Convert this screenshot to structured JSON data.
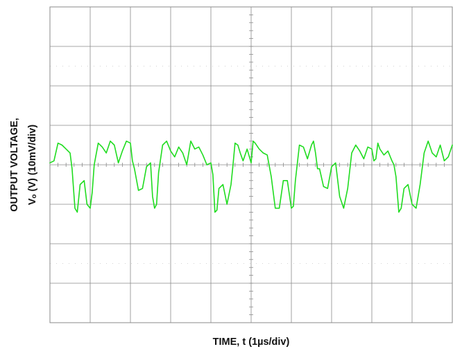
{
  "chart_data": {
    "type": "line",
    "title": "",
    "xlabel": "TIME, t (1µs/div)",
    "ylabel_line1": "OUTPUT VOLTAGE,",
    "ylabel_line2": "Vₒ (V) (10mV/div)",
    "x_unit": "µs",
    "y_unit": "mV",
    "xlim": [
      -5,
      5
    ],
    "ylim": [
      -40,
      40
    ],
    "x_divisions": 10,
    "y_divisions": 8,
    "grid": true,
    "legend": "none",
    "trace_color": "#1fdc1f",
    "grid_color": "#8a8a8a",
    "period_us": 4.05,
    "series": [
      {
        "x": [
          -5.0,
          -4.9,
          -4.8,
          -4.7,
          -4.6,
          -4.5,
          -4.45,
          -4.38,
          -4.32,
          -4.25,
          -4.15,
          -4.08,
          -4.0,
          -3.95,
          -3.9,
          -3.8,
          -3.7,
          -3.6,
          -3.5,
          -3.4,
          -3.3,
          -3.2,
          -3.1,
          -3.0,
          -2.95,
          -2.9,
          -2.8,
          -2.7,
          -2.6,
          -2.5,
          -2.45,
          -2.4,
          -2.35,
          -2.3,
          -2.2,
          -2.1,
          -2.0,
          -1.9,
          -1.8,
          -1.7,
          -1.6,
          -1.5,
          -1.4,
          -1.3,
          -1.2,
          -1.1,
          -1.0,
          -0.95,
          -0.9,
          -0.85,
          -0.8,
          -0.7,
          -0.6,
          -0.5,
          -0.45,
          -0.4,
          -0.33,
          -0.27,
          -0.2,
          -0.1,
          0.0,
          0.05,
          0.1,
          0.2,
          0.3,
          0.4,
          0.5,
          0.6,
          0.7,
          0.8,
          0.9,
          1.0,
          1.05,
          1.1,
          1.2,
          1.3,
          1.4,
          1.5,
          1.55,
          1.6,
          1.65,
          1.7,
          1.8,
          1.9,
          2.0,
          2.1,
          2.2,
          2.3,
          2.4,
          2.5,
          2.6,
          2.7,
          2.8,
          2.9,
          3.0,
          3.05,
          3.1,
          3.15,
          3.2,
          3.3,
          3.4,
          3.5,
          3.55,
          3.6,
          3.67,
          3.73,
          3.8,
          3.9,
          4.0,
          4.1,
          4.2,
          4.3,
          4.4,
          4.5,
          4.6,
          4.7,
          4.8,
          4.9,
          5.0
        ],
        "y": [
          0.5,
          1.0,
          5.5,
          5.0,
          4.0,
          3.0,
          -1.0,
          -11.0,
          -12.0,
          -5.0,
          -4.0,
          -10.0,
          -11.0,
          -7.0,
          0.0,
          5.5,
          4.5,
          3.0,
          6.0,
          5.0,
          0.5,
          3.5,
          6.0,
          5.5,
          1.0,
          -1.0,
          -6.5,
          -6.0,
          -0.5,
          0.5,
          -8.0,
          -11.0,
          -10.0,
          -2.0,
          5.0,
          6.0,
          3.5,
          2.0,
          4.5,
          3.0,
          0.0,
          6.0,
          4.0,
          4.5,
          2.5,
          0.0,
          0.5,
          -2.5,
          -12.0,
          -11.5,
          -6.0,
          -5.0,
          -10.0,
          -5.0,
          0.0,
          5.5,
          5.0,
          3.0,
          1.0,
          4.0,
          0.5,
          6.0,
          5.5,
          4.0,
          3.0,
          2.5,
          -3.0,
          -11.0,
          -11.0,
          -4.0,
          -4.0,
          -11.0,
          -10.5,
          -4.0,
          5.0,
          4.5,
          1.5,
          5.0,
          6.0,
          3.0,
          -1.0,
          -1.0,
          -5.5,
          -6.0,
          -0.5,
          0.5,
          -8.0,
          -11.0,
          -6.0,
          3.0,
          5.0,
          3.5,
          1.5,
          4.5,
          4.0,
          1.0,
          1.5,
          5.5,
          4.0,
          2.5,
          3.5,
          1.0,
          0.0,
          -3.0,
          -12.0,
          -11.0,
          -6.0,
          -5.0,
          -10.0,
          -11.0,
          -5.0,
          3.0,
          6.0,
          3.0,
          2.0,
          5.0,
          1.0,
          2.0,
          5.0
        ]
      }
    ]
  }
}
